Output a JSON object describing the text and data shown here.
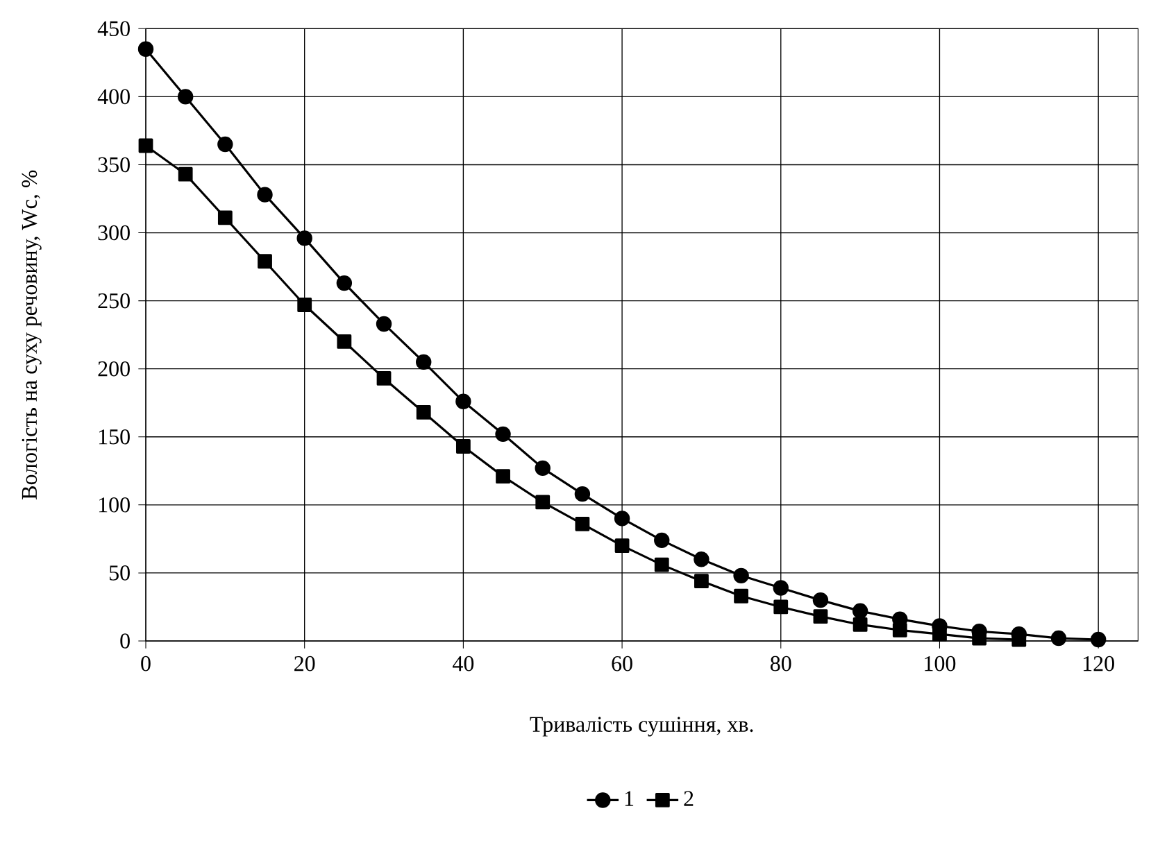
{
  "chart_data": {
    "type": "line",
    "xlabel": "Тривалість сушіння, хв.",
    "ylabel": "Вологість на суху речовину, Wc, %",
    "xlim": [
      0,
      125
    ],
    "ylim": [
      0,
      450
    ],
    "xticks": [
      0,
      20,
      40,
      60,
      80,
      100,
      120
    ],
    "yticks": [
      0,
      50,
      100,
      150,
      200,
      250,
      300,
      350,
      400,
      450
    ],
    "grid": true,
    "legend": "bottom",
    "line_style": "solid",
    "series": [
      {
        "name": "1",
        "color": "#000000",
        "marker": "circle",
        "x": [
          0,
          5,
          10,
          15,
          20,
          25,
          30,
          35,
          40,
          45,
          50,
          55,
          60,
          65,
          70,
          75,
          80,
          85,
          90,
          95,
          100,
          105,
          110,
          115,
          120
        ],
        "values": [
          435,
          400,
          365,
          328,
          296,
          263,
          233,
          205,
          176,
          152,
          127,
          108,
          90,
          74,
          60,
          48,
          39,
          30,
          22,
          16,
          11,
          7,
          5,
          2,
          1
        ]
      },
      {
        "name": "2",
        "color": "#000000",
        "marker": "square",
        "x": [
          0,
          5,
          10,
          15,
          20,
          25,
          30,
          35,
          40,
          45,
          50,
          55,
          60,
          65,
          70,
          75,
          80,
          85,
          90,
          95,
          100,
          105,
          110
        ],
        "values": [
          364,
          343,
          311,
          279,
          247,
          220,
          193,
          168,
          143,
          121,
          102,
          86,
          70,
          56,
          44,
          33,
          25,
          18,
          12,
          8,
          5,
          2,
          1
        ]
      }
    ]
  }
}
